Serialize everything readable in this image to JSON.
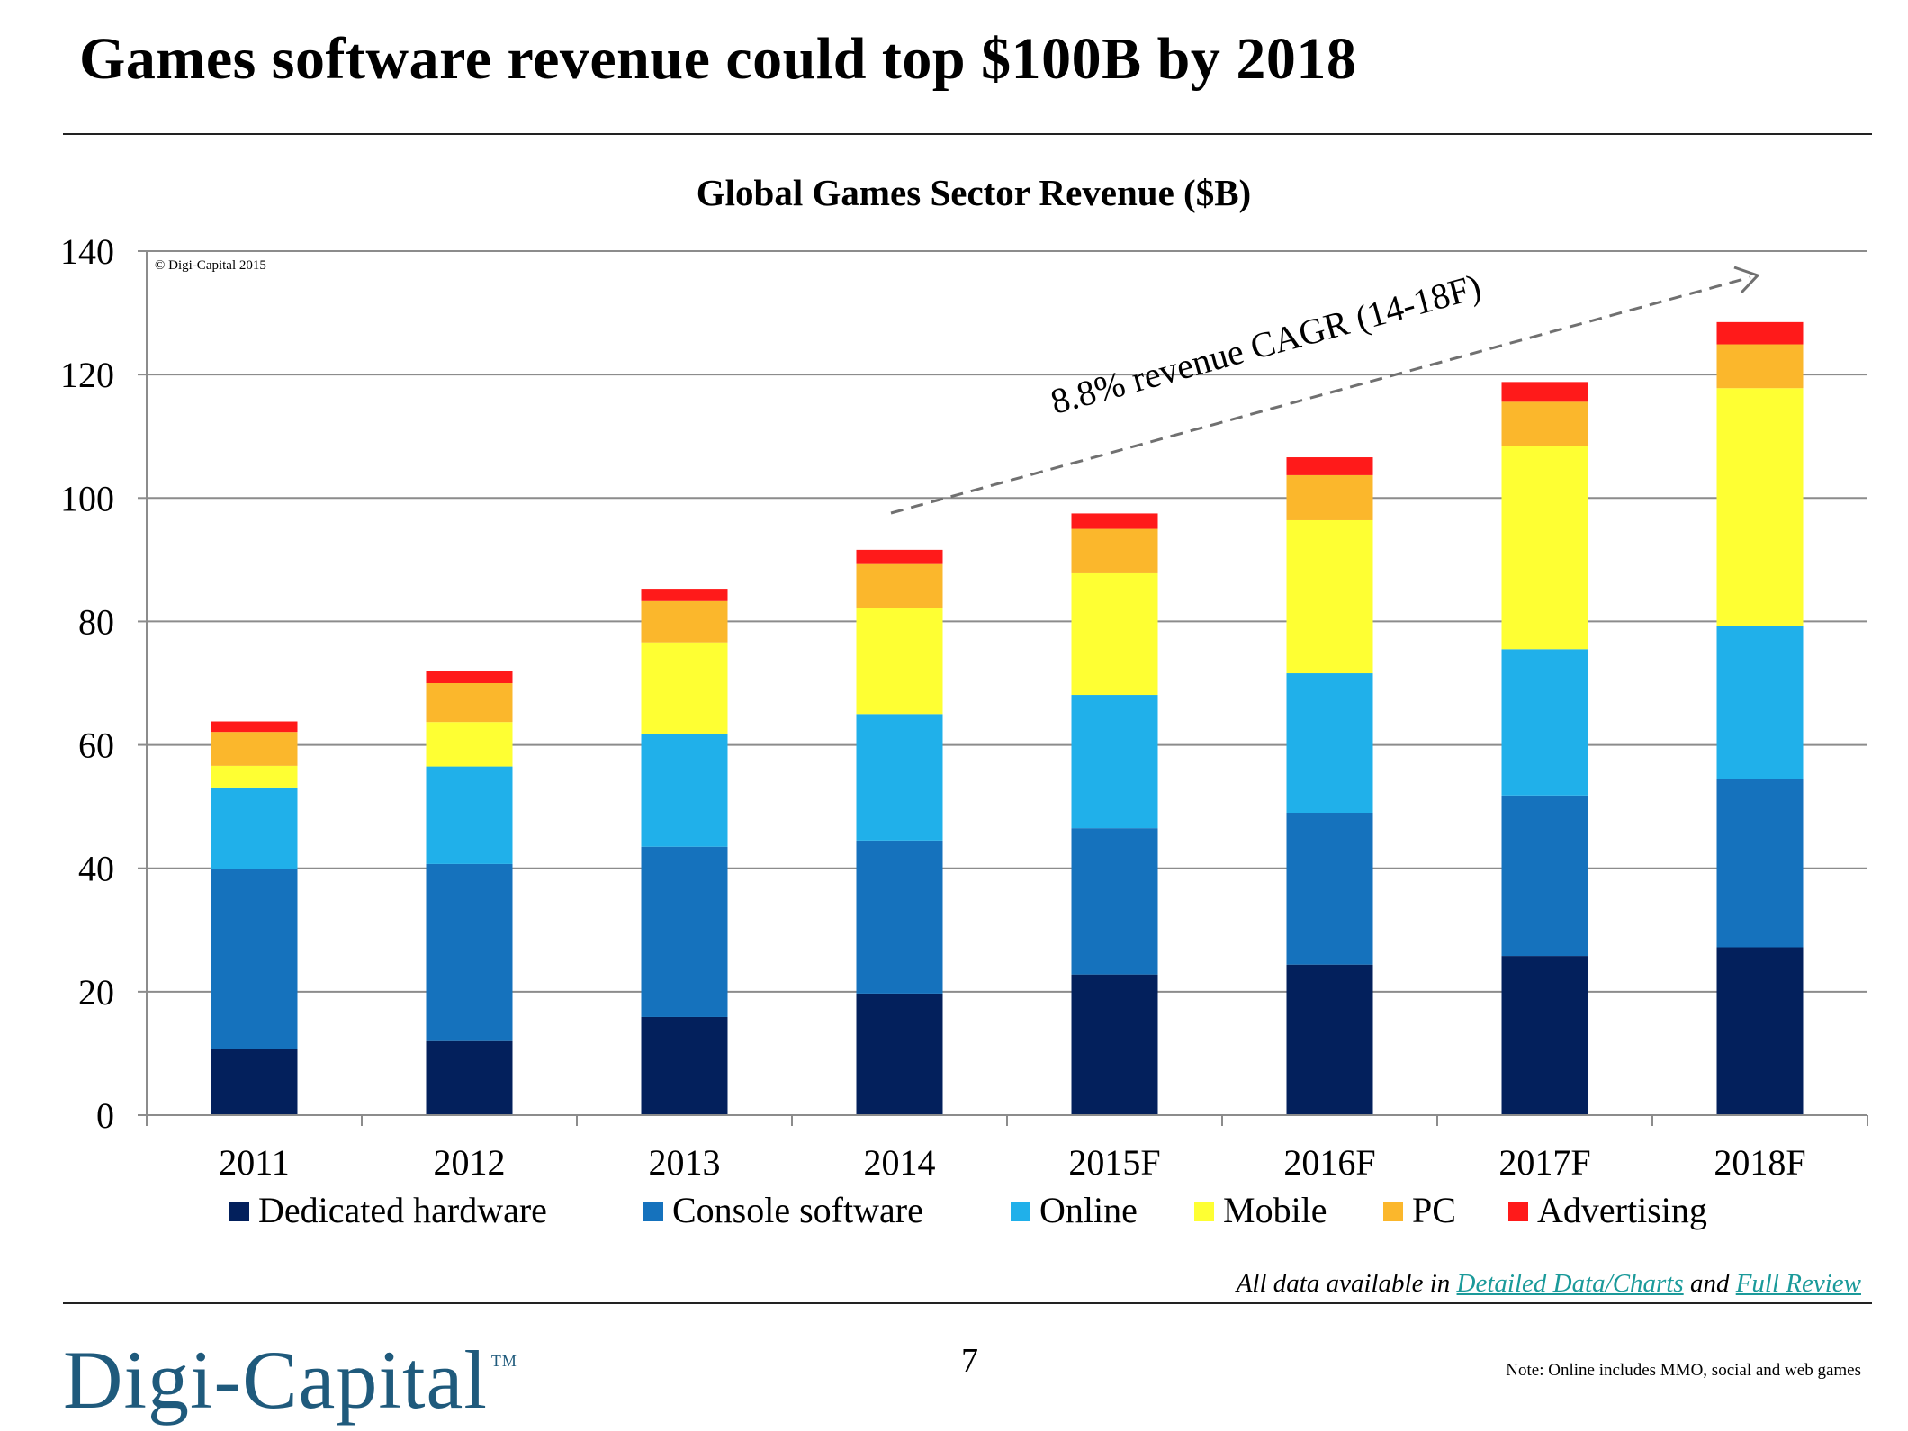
{
  "slide": {
    "title": "Games software revenue could top $100B by 2018",
    "data_note_prefix": "All data available in ",
    "data_note_link1": "Detailed Data/Charts",
    "data_note_mid": " and ",
    "data_note_link2": "Full Review",
    "logo_text": "Digi-Capital",
    "logo_mark": "TM",
    "page_number": "7",
    "footnote": "Note: Online includes MMO, social and web games"
  },
  "chart_data": {
    "type": "bar",
    "stacked": true,
    "title": "Global Games Sector Revenue ($B)",
    "copyright": "© Digi-Capital 2015",
    "annotation": "8.8% revenue CAGR (14-18F)",
    "categories": [
      "2011",
      "2012",
      "2013",
      "2014",
      "2015F",
      "2016F",
      "2017F",
      "2018F"
    ],
    "ylim": [
      0,
      140
    ],
    "yticks": [
      0,
      20,
      40,
      60,
      80,
      100,
      120,
      140
    ],
    "grid": true,
    "legend_position": "bottom",
    "series": [
      {
        "name": "Dedicated hardware",
        "color": "#03205c",
        "values": [
          10.7,
          12.0,
          15.9,
          19.7,
          22.8,
          24.4,
          25.8,
          27.2
        ]
      },
      {
        "name": "Console software",
        "color": "#1572bd",
        "values": [
          29.2,
          28.7,
          27.6,
          24.8,
          23.7,
          24.6,
          26.0,
          27.3
        ]
      },
      {
        "name": "Online",
        "color": "#20b0ea",
        "values": [
          13.2,
          15.8,
          18.2,
          20.5,
          21.6,
          22.6,
          23.7,
          24.8
        ]
      },
      {
        "name": "Mobile",
        "color": "#feff33",
        "values": [
          3.5,
          7.2,
          14.9,
          17.2,
          19.7,
          24.8,
          32.9,
          38.5
        ]
      },
      {
        "name": "PC",
        "color": "#fbb72c",
        "values": [
          5.5,
          6.3,
          6.7,
          7.1,
          7.2,
          7.3,
          7.2,
          7.1
        ]
      },
      {
        "name": "Advertising",
        "color": "#ff1a1a",
        "values": [
          1.7,
          1.9,
          2.0,
          2.3,
          2.5,
          2.9,
          3.2,
          3.6
        ]
      }
    ]
  }
}
